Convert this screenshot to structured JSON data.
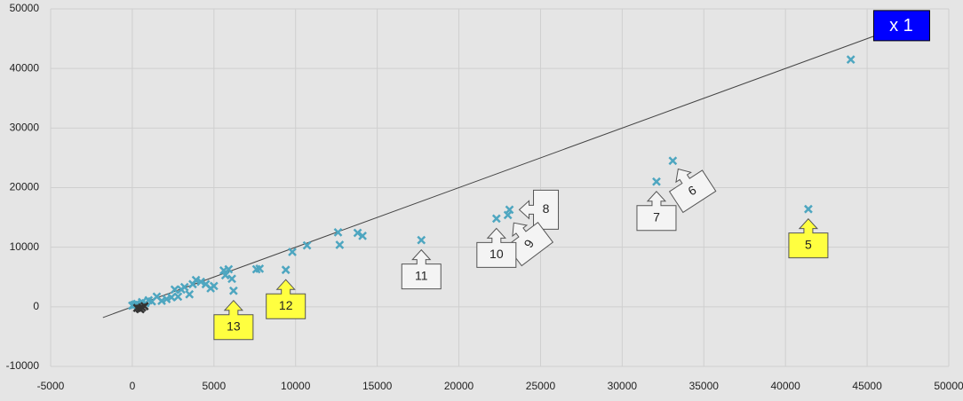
{
  "chart_data": {
    "type": "scatter",
    "xlim": [
      -5000,
      50000
    ],
    "xticks": [
      -5000,
      0,
      5000,
      10000,
      15000,
      20000,
      25000,
      30000,
      35000,
      40000,
      45000,
      50000
    ],
    "ylim": [
      -10000,
      50000
    ],
    "yticks": [
      -10000,
      0,
      10000,
      20000,
      30000,
      40000,
      50000
    ],
    "grid": true,
    "series": [
      {
        "color": "#4ea6c0",
        "x": [
          44000,
          41400,
          33100,
          32100,
          23100,
          23000,
          22300,
          17700,
          14100,
          13800,
          12700,
          12600,
          10700,
          9800,
          9400,
          7600,
          7800,
          6200,
          6100,
          5900,
          5600,
          5700,
          5000,
          4800,
          4500,
          4200,
          3900,
          3700,
          3500,
          3200,
          3000,
          2800,
          2600,
          2400,
          2100,
          1800,
          1500,
          1200,
          1000,
          800,
          600,
          400,
          300,
          200,
          100,
          0
        ],
        "y": [
          41500,
          16400,
          24500,
          21000,
          16300,
          15400,
          14800,
          11200,
          11900,
          12400,
          10400,
          12500,
          10300,
          9200,
          6200,
          6300,
          6400,
          2700,
          4700,
          6300,
          6100,
          5300,
          3500,
          3100,
          3800,
          4200,
          4500,
          3800,
          2100,
          3300,
          2900,
          1700,
          2900,
          1600,
          1300,
          1000,
          1700,
          900,
          1100,
          600,
          800,
          300,
          500,
          400,
          300,
          200
        ]
      },
      {
        "color": "#333333",
        "x": [
          300,
          450,
          600,
          750,
          500
        ],
        "y": [
          -200,
          -300,
          -100,
          100,
          -400
        ]
      }
    ],
    "reference_line": {
      "label": "x 1",
      "x": [
        -1800,
        45400
      ],
      "y": [
        -1800,
        45400
      ]
    },
    "callouts": [
      {
        "label": "5",
        "point": 1,
        "color": "#ffff40"
      },
      {
        "label": "6",
        "point": 2,
        "color": "#f4f4f4"
      },
      {
        "label": "7",
        "point": 3,
        "color": "#f4f4f4"
      },
      {
        "label": "8",
        "point": 4,
        "color": "#f4f4f4"
      },
      {
        "label": "9",
        "point": 5,
        "color": "#f4f4f4"
      },
      {
        "label": "10",
        "point": 6,
        "color": "#f4f4f4"
      },
      {
        "label": "11",
        "point": 7,
        "color": "#f4f4f4"
      },
      {
        "label": "12",
        "point": 14,
        "color": "#ffff40"
      },
      {
        "label": "13",
        "point": 17,
        "color": "#ffff40"
      }
    ]
  }
}
